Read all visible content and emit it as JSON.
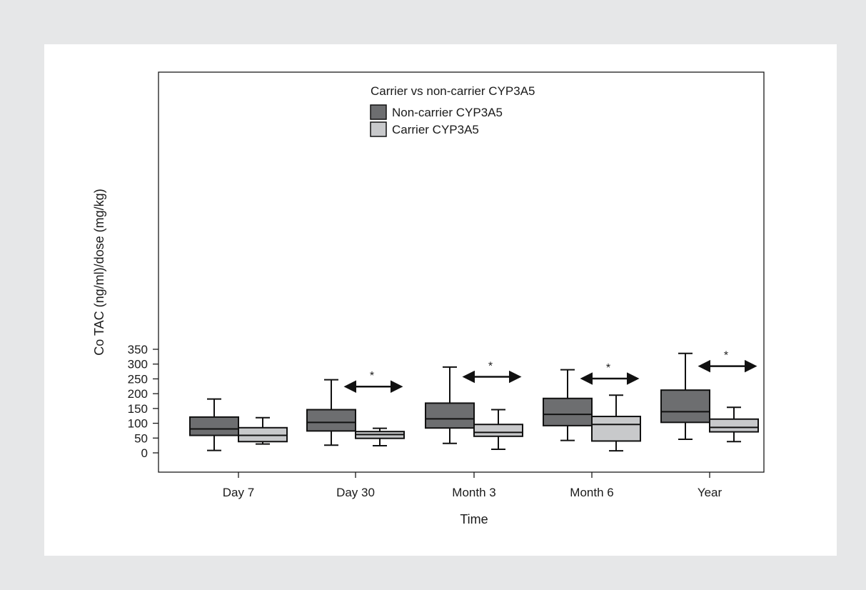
{
  "chart_data": {
    "type": "boxplot",
    "title": "",
    "xlabel": "Time",
    "ylabel": "Co TAC (ng/ml)/dose (mg/kg)",
    "ylim": [
      -20,
      360
    ],
    "yticks": [
      0,
      50,
      100,
      150,
      200,
      250,
      300,
      350
    ],
    "categories": [
      "Day 7",
      "Day 30",
      "Month 3",
      "Month 6",
      "Year"
    ],
    "legend": {
      "title": "Carrier vs non-carrier CYP3A5",
      "placement": "top-center"
    },
    "series": [
      {
        "name": "Non-carrier CYP3A5",
        "color": "#6d6e70",
        "boxes": [
          {
            "min": 8,
            "q1": 59,
            "median": 81,
            "q3": 121,
            "max": 182
          },
          {
            "min": 26,
            "q1": 74,
            "median": 103,
            "q3": 146,
            "max": 247
          },
          {
            "min": 32,
            "q1": 84,
            "median": 115,
            "q3": 168,
            "max": 290
          },
          {
            "min": 42,
            "q1": 92,
            "median": 130,
            "q3": 184,
            "max": 281
          },
          {
            "min": 46,
            "q1": 103,
            "median": 139,
            "q3": 212,
            "max": 336
          }
        ]
      },
      {
        "name": "Carrier CYP3A5",
        "color": "#c8c9cb",
        "boxes": [
          {
            "min": 30,
            "q1": 38,
            "median": 59,
            "q3": 85,
            "max": 119
          },
          {
            "min": 24,
            "q1": 49,
            "median": 62,
            "q3": 72,
            "max": 83
          },
          {
            "min": 12,
            "q1": 56,
            "median": 69,
            "q3": 96,
            "max": 146
          },
          {
            "min": 7,
            "q1": 40,
            "median": 96,
            "q3": 123,
            "max": 195
          },
          {
            "min": 38,
            "q1": 71,
            "median": 86,
            "q3": 114,
            "max": 154
          }
        ]
      }
    ],
    "significance": [
      {
        "category": "Day 30",
        "label": "*",
        "y": 224
      },
      {
        "category": "Month 3",
        "label": "*",
        "y": 257
      },
      {
        "category": "Month 6",
        "label": "*",
        "y": 251
      },
      {
        "category": "Year",
        "label": "*",
        "y": 293
      }
    ],
    "grid": false
  }
}
